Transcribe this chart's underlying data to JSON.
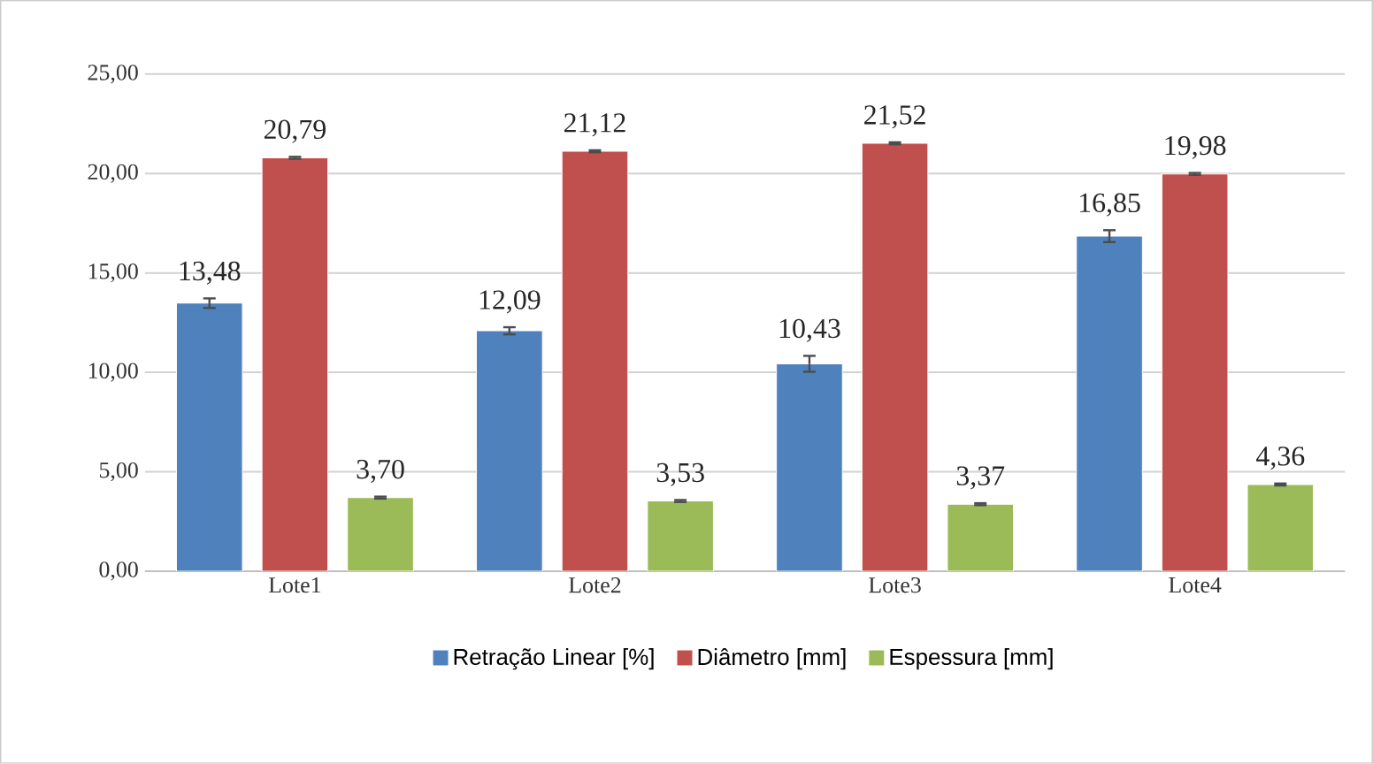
{
  "chart_data": {
    "type": "bar",
    "categories": [
      "Lote1",
      "Lote2",
      "Lote3",
      "Lote4"
    ],
    "series": [
      {
        "name": "Retração Linear [%]",
        "color": "#4f81bd",
        "values": [
          13.48,
          12.09,
          10.43,
          16.85
        ],
        "errors": [
          0.24,
          0.18,
          0.4,
          0.3
        ],
        "value_labels": [
          "13,48",
          "12,09",
          "10,43",
          "16,85"
        ]
      },
      {
        "name": "Diâmetro [mm]",
        "color": "#c0504d",
        "values": [
          20.79,
          21.12,
          21.52,
          19.98
        ],
        "errors": [
          0.05,
          0.05,
          0.05,
          0.05
        ],
        "value_labels": [
          "20,79",
          "21,12",
          "21,52",
          "19,98"
        ]
      },
      {
        "name": "Espessura [mm]",
        "color": "#9bbb59",
        "values": [
          3.7,
          3.53,
          3.37,
          4.36
        ],
        "errors": [
          0.05,
          0.05,
          0.05,
          0.05
        ],
        "value_labels": [
          "3,70",
          "3,53",
          "3,37",
          "4,36"
        ]
      }
    ],
    "ylim": [
      0,
      25
    ],
    "yticks": [
      {
        "value": 0,
        "label": "0,00"
      },
      {
        "value": 5,
        "label": "5,00"
      },
      {
        "value": 10,
        "label": "10,00"
      },
      {
        "value": 15,
        "label": "15,00"
      },
      {
        "value": 20,
        "label": "20,00"
      },
      {
        "value": 25,
        "label": "25,00"
      }
    ],
    "grid": "y",
    "legend": "bottom"
  }
}
